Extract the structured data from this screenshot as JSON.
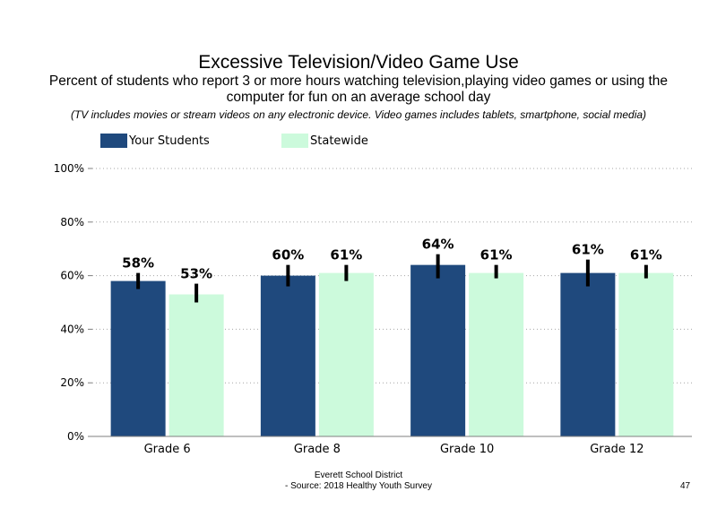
{
  "title": "Excessive Television/Video Game Use",
  "subtitle": "Percent of students who report 3 or more hours watching television,playing video games or using the computer for fun on an average school day",
  "note": "(TV includes movies or stream videos on any electronic device. Video games includes tablets, smartphone, social media)",
  "footer": {
    "line1": "Everett School District",
    "line2": "- Source: 2018 Healthy Youth Survey",
    "page_number": "47"
  },
  "colors": {
    "your_students": "#1f497d",
    "statewide": "#ccfadc",
    "error_bar": "#000000",
    "grid": "#a6a6a6"
  },
  "chart_data": {
    "type": "bar",
    "categories": [
      "Grade 6",
      "Grade 8",
      "Grade 10",
      "Grade 12"
    ],
    "series": [
      {
        "name": "Your Students",
        "values": [
          58,
          60,
          64,
          61
        ],
        "labels": [
          "58%",
          "60%",
          "64%",
          "61%"
        ],
        "error_low": [
          55,
          56,
          59,
          56
        ],
        "error_high": [
          61,
          64,
          68,
          66
        ]
      },
      {
        "name": "Statewide",
        "values": [
          53,
          61,
          61,
          61
        ],
        "labels": [
          "53%",
          "61%",
          "61%",
          "61%"
        ],
        "error_low": [
          50,
          58,
          59,
          59
        ],
        "error_high": [
          57,
          64,
          64,
          64
        ]
      }
    ],
    "ylim": [
      0,
      100
    ],
    "yticks": [
      "0%",
      "20%",
      "40%",
      "60%",
      "80%",
      "100%"
    ],
    "ytick_values": [
      0,
      20,
      40,
      60,
      80,
      100
    ],
    "grid": true,
    "legend_position": "top-left"
  }
}
